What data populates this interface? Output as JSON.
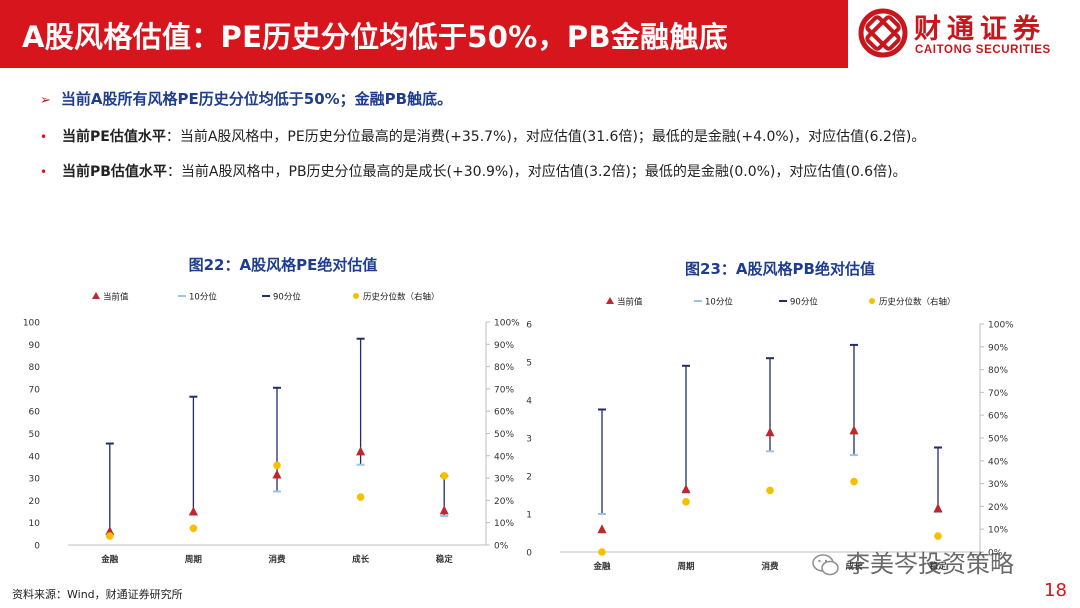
{
  "header": {
    "title": "A股风格估值：PE历史分位均低于50%，PB金融触底",
    "logo_cn": "财通证券",
    "logo_en": "CAITONG SECURITIES"
  },
  "summary": "当前A股所有风格PE历史分位均低于50%；金融PB触底。",
  "bullets": [
    {
      "lead": "当前PE估值水平",
      "text": "：当前A股风格中，PE历史分位最高的是消费(+35.7%)，对应估值(31.6倍)；最低的是金融(+4.0%)，对应估值(6.2倍)。"
    },
    {
      "lead": "当前PB估值水平",
      "text": "：当前A股风格中，PB历史分位最高的是成长(+30.9%)，对应估值(3.2倍)；最低的是金融(0.0%)，对应估值(0.6倍)。"
    }
  ],
  "chart_data": [
    {
      "type": "scatter",
      "title": "图22：A股风格PE绝对估值",
      "categories": [
        "金融",
        "周期",
        "消费",
        "成长",
        "稳定"
      ],
      "legend": [
        "当前值",
        "10分位",
        "90分位",
        "历史分位数（右轴）"
      ],
      "legend_placement": "top",
      "ylim": [
        0,
        100
      ],
      "ylim_right": [
        0,
        1
      ],
      "yticks": [
        "0",
        "10",
        "20",
        "30",
        "40",
        "50",
        "60",
        "70",
        "80",
        "90",
        "100"
      ],
      "yticks_right": [
        "0%",
        "10%",
        "20%",
        "30%",
        "40%",
        "50%",
        "60%",
        "70%",
        "80%",
        "90%",
        "100%"
      ],
      "series": [
        {
          "name": "当前值",
          "values": [
            6.2,
            15,
            31.6,
            42,
            15.5
          ]
        },
        {
          "name": "10分位",
          "values": [
            5,
            14,
            24,
            36,
            13
          ]
        },
        {
          "name": "90分位",
          "values": [
            45.5,
            66.5,
            70.5,
            92.5,
            31
          ]
        },
        {
          "name": "历史分位数（右轴）",
          "values": [
            0.04,
            0.075,
            0.357,
            0.215,
            0.31
          ]
        }
      ],
      "colors": {
        "current": "#c0262d",
        "p10": "#9dc3e6",
        "p90": "#1f2d6b",
        "pct": "#f5c000"
      }
    },
    {
      "type": "scatter",
      "title": "图23：A股风格PB绝对估值",
      "categories": [
        "金融",
        "周期",
        "消费",
        "成长",
        "稳定"
      ],
      "legend": [
        "当前值",
        "10分位",
        "90分位",
        "历史分位数（右轴）"
      ],
      "legend_placement": "top",
      "ylim": [
        0,
        6
      ],
      "ylim_right": [
        0,
        1
      ],
      "yticks": [
        "0",
        "1",
        "2",
        "3",
        "4",
        "5",
        "6"
      ],
      "yticks_right": [
        "0%",
        "10%",
        "20%",
        "30%",
        "40%",
        "50%",
        "60%",
        "70%",
        "80%",
        "90%",
        "100%"
      ],
      "series": [
        {
          "name": "当前值",
          "values": [
            0.6,
            1.65,
            3.15,
            3.2,
            1.15
          ]
        },
        {
          "name": "10分位",
          "values": [
            1.0,
            1.6,
            2.65,
            2.55,
            1.05
          ]
        },
        {
          "name": "90分位",
          "values": [
            3.75,
            4.9,
            5.1,
            5.45,
            2.75
          ]
        },
        {
          "name": "历史分位数（右轴）",
          "values": [
            0.0,
            0.22,
            0.27,
            0.309,
            0.07
          ]
        }
      ],
      "colors": {
        "current": "#c0262d",
        "p10": "#9dc3e6",
        "p90": "#1f2d6b",
        "pct": "#f5c000"
      }
    }
  ],
  "source": "资料来源：Wind，财通证券研究所",
  "page_number": "18",
  "watermark": "李美岑投资策略"
}
